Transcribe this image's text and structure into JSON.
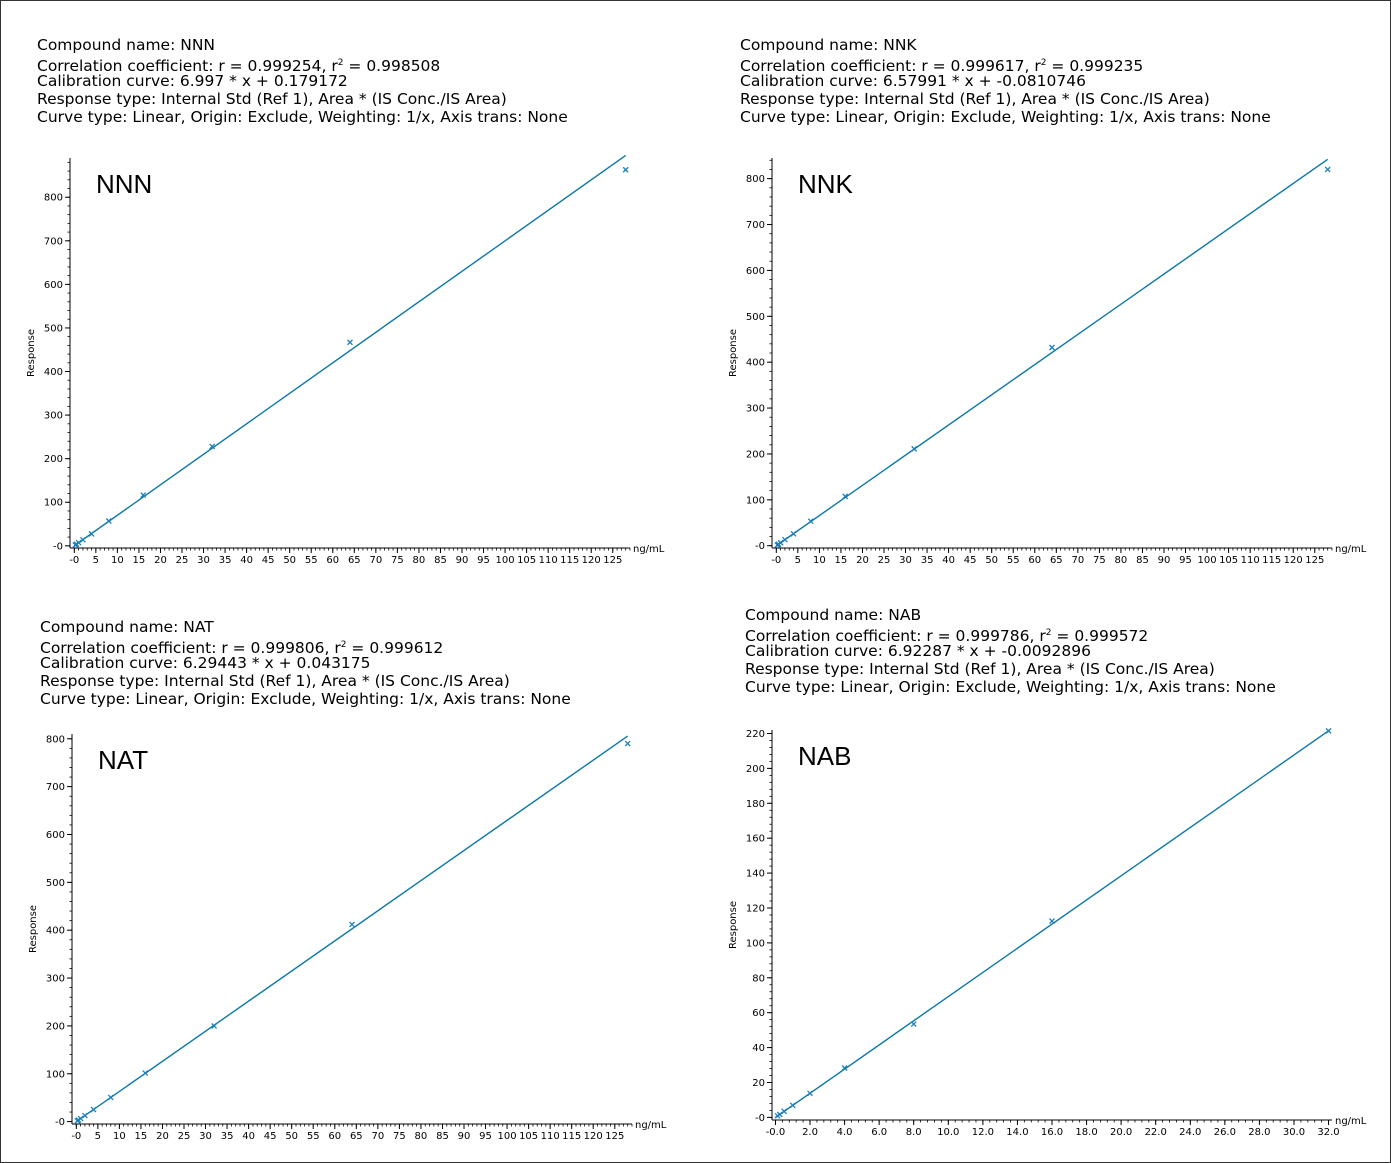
{
  "page": {
    "line_color": "#0b78a8",
    "point_color": "#1a7fbf"
  },
  "chart_data": [
    {
      "type": "scatter",
      "title": "NNN",
      "info": {
        "compound": "Compound name: NNN",
        "corr_prefix": "Correlation coefficient: r = 0.999254, r",
        "corr_suffix": " = 0.998508",
        "calib": "Calibration curve: 6.997 * x + 0.179172",
        "response": "Response type: Internal Std (Ref 1), Area * (IS Conc./IS Area)",
        "curve": "Curve type: Linear, Origin: Exclude, Weighting: 1/x, Axis trans: None"
      },
      "xlabel": "ng/mL",
      "ylabel": "Response",
      "xlim": [
        -1,
        129
      ],
      "ylim": [
        -5,
        890
      ],
      "x_ticks": [
        "-0",
        "5",
        "10",
        "15",
        "20",
        "25",
        "30",
        "35",
        "40",
        "45",
        "50",
        "55",
        "60",
        "65",
        "70",
        "75",
        "80",
        "85",
        "90",
        "95",
        "100",
        "105",
        "110",
        "115",
        "120",
        "125"
      ],
      "x_tick_values": [
        0,
        5,
        10,
        15,
        20,
        25,
        30,
        35,
        40,
        45,
        50,
        55,
        60,
        65,
        70,
        75,
        80,
        85,
        90,
        95,
        100,
        105,
        110,
        115,
        120,
        125
      ],
      "y_ticks": [
        "-0",
        "100",
        "200",
        "300",
        "400",
        "500",
        "600",
        "700",
        "800"
      ],
      "y_tick_values": [
        0,
        100,
        200,
        300,
        400,
        500,
        600,
        700,
        800
      ],
      "slope": 6.997,
      "intercept": 0.179172,
      "line_x": [
        0,
        128
      ],
      "points": {
        "x": [
          0.25,
          0.5,
          1,
          2,
          4,
          8,
          16,
          32,
          64,
          128
        ],
        "y": [
          1.9,
          3.8,
          7.1,
          13.8,
          27.4,
          57.0,
          116.5,
          228.0,
          467.0,
          863.0
        ]
      }
    },
    {
      "type": "scatter",
      "title": "NNK",
      "info": {
        "compound": "Compound name: NNK",
        "corr_prefix": "Correlation coefficient: r = 0.999617, r",
        "corr_suffix": " = 0.999235",
        "calib": "Calibration curve: 6.57991 * x + -0.0810746",
        "response": "Response type: Internal Std (Ref 1), Area * (IS Conc./IS Area)",
        "curve": "Curve type: Linear, Origin: Exclude, Weighting: 1/x, Axis trans: None"
      },
      "xlabel": "ng/mL",
      "ylabel": "Response",
      "xlim": [
        -1,
        129
      ],
      "ylim": [
        -5,
        845
      ],
      "x_ticks": [
        "-0",
        "5",
        "10",
        "15",
        "20",
        "25",
        "30",
        "35",
        "40",
        "45",
        "50",
        "55",
        "60",
        "65",
        "70",
        "75",
        "80",
        "85",
        "90",
        "95",
        "100",
        "105",
        "110",
        "115",
        "120",
        "125"
      ],
      "x_tick_values": [
        0,
        5,
        10,
        15,
        20,
        25,
        30,
        35,
        40,
        45,
        50,
        55,
        60,
        65,
        70,
        75,
        80,
        85,
        90,
        95,
        100,
        105,
        110,
        115,
        120,
        125
      ],
      "y_ticks": [
        "-0",
        "100",
        "200",
        "300",
        "400",
        "500",
        "600",
        "700",
        "800"
      ],
      "y_tick_values": [
        0,
        100,
        200,
        300,
        400,
        500,
        600,
        700,
        800
      ],
      "slope": 6.57991,
      "intercept": -0.0810746,
      "line_x": [
        0,
        128
      ],
      "points": {
        "x": [
          0.25,
          0.5,
          1,
          2,
          4,
          8,
          16,
          32,
          64,
          128
        ],
        "y": [
          1.5,
          3.2,
          6.4,
          13.1,
          25.9,
          53.5,
          107.5,
          211.0,
          432.0,
          820.0
        ]
      }
    },
    {
      "type": "scatter",
      "title": "NAT",
      "info": {
        "compound": "Compound name: NAT",
        "corr_prefix": "Correlation coefficient: r = 0.999806, r",
        "corr_suffix": " = 0.999612",
        "calib": "Calibration curve: 6.29443 * x + 0.043175",
        "response": "Response type: Internal Std (Ref 1), Area * (IS Conc./IS Area)",
        "curve": "Curve type: Linear, Origin: Exclude, Weighting: 1/x, Axis trans: None"
      },
      "xlabel": "ng/mL",
      "ylabel": "Response",
      "xlim": [
        -1,
        129
      ],
      "ylim": [
        -5,
        810
      ],
      "x_ticks": [
        "-0",
        "5",
        "10",
        "15",
        "20",
        "25",
        "30",
        "35",
        "40",
        "45",
        "50",
        "55",
        "60",
        "65",
        "70",
        "75",
        "80",
        "85",
        "90",
        "95",
        "100",
        "105",
        "110",
        "115",
        "120",
        "125"
      ],
      "x_tick_values": [
        0,
        5,
        10,
        15,
        20,
        25,
        30,
        35,
        40,
        45,
        50,
        55,
        60,
        65,
        70,
        75,
        80,
        85,
        90,
        95,
        100,
        105,
        110,
        115,
        120,
        125
      ],
      "y_ticks": [
        "-0",
        "100",
        "200",
        "300",
        "400",
        "500",
        "600",
        "700",
        "800"
      ],
      "y_tick_values": [
        0,
        100,
        200,
        300,
        400,
        500,
        600,
        700,
        800
      ],
      "slope": 6.29443,
      "intercept": 0.043175,
      "line_x": [
        0,
        128
      ],
      "points": {
        "x": [
          0.25,
          0.5,
          1,
          2,
          4,
          8,
          16,
          32,
          64,
          128
        ],
        "y": [
          1.6,
          3.2,
          6.3,
          12.6,
          25.2,
          50.5,
          101.5,
          200.0,
          412.0,
          790.0
        ]
      }
    },
    {
      "type": "scatter",
      "title": "NAB",
      "info": {
        "compound": "Compound name: NAB",
        "corr_prefix": "Correlation coefficient: r = 0.999786, r",
        "corr_suffix": " = 0.999572",
        "calib": "Calibration curve: 6.92287 * x + -0.0092896",
        "response": "Response type: Internal Std (Ref 1), Area * (IS Conc./IS Area)",
        "curve": "Curve type: Linear, Origin: Exclude, Weighting: 1/x, Axis trans: None"
      },
      "xlabel": "ng/mL",
      "ylabel": "Response",
      "xlim": [
        -0.2,
        32.2
      ],
      "ylim": [
        -1.5,
        222
      ],
      "x_ticks": [
        "-0.0",
        "2.0",
        "4.0",
        "6.0",
        "8.0",
        "10.0",
        "12.0",
        "14.0",
        "16.0",
        "18.0",
        "20.0",
        "22.0",
        "24.0",
        "26.0",
        "28.0",
        "30.0",
        "32.0"
      ],
      "x_tick_values": [
        0,
        2,
        4,
        6,
        8,
        10,
        12,
        14,
        16,
        18,
        20,
        22,
        24,
        26,
        28,
        30,
        32
      ],
      "y_ticks": [
        "-0",
        "20",
        "40",
        "60",
        "80",
        "100",
        "120",
        "140",
        "160",
        "180",
        "200",
        "220"
      ],
      "y_tick_values": [
        0,
        20,
        40,
        60,
        80,
        100,
        120,
        140,
        160,
        180,
        200,
        220
      ],
      "slope": 6.92287,
      "intercept": -0.0092896,
      "line_x": [
        0,
        32
      ],
      "points": {
        "x": [
          0.125,
          0.25,
          0.5,
          1,
          2,
          4,
          8,
          16,
          32
        ],
        "y": [
          0.9,
          1.7,
          3.5,
          6.9,
          13.8,
          28.3,
          53.5,
          112.5,
          221.5
        ]
      }
    }
  ]
}
